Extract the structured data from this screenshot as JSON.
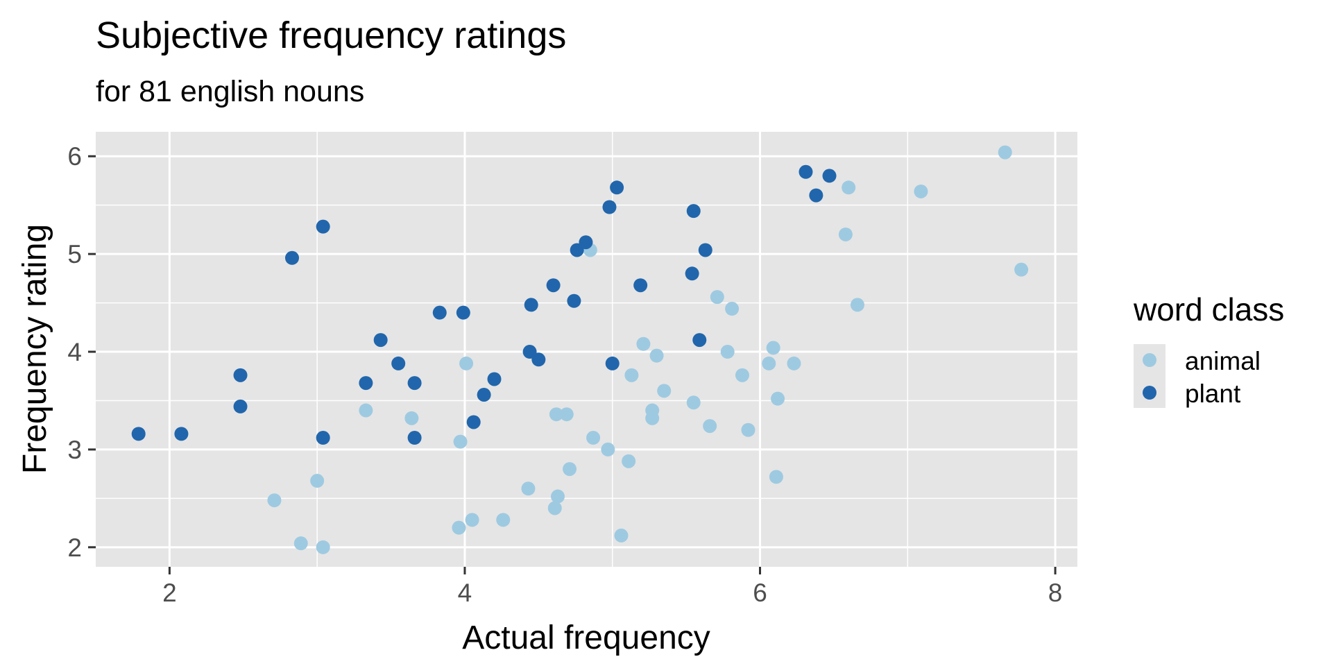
{
  "chart_data": {
    "type": "scatter",
    "title": "Subjective frequency ratings",
    "subtitle": "for 81 english nouns",
    "xlabel": "Actual frequency",
    "ylabel": "Frequency rating",
    "xlim": [
      1.5,
      8.15
    ],
    "ylim": [
      1.8,
      6.25
    ],
    "x_ticks": [
      2,
      4,
      6,
      8
    ],
    "y_ticks": [
      2,
      3,
      4,
      5,
      6
    ],
    "grid": true,
    "legend": {
      "title": "word class",
      "position": "right",
      "entries": [
        "animal",
        "plant"
      ]
    },
    "colors": {
      "animal": "#9ecae1",
      "plant": "#2166ac",
      "panel": "#e5e5e5",
      "grid": "#ffffff"
    },
    "series": [
      {
        "name": "animal",
        "points": [
          [
            2.71,
            2.48
          ],
          [
            2.89,
            2.04
          ],
          [
            3.0,
            2.68
          ],
          [
            3.04,
            2.0
          ],
          [
            3.33,
            3.4
          ],
          [
            3.64,
            3.32
          ],
          [
            3.97,
            3.08
          ],
          [
            3.96,
            2.2
          ],
          [
            4.01,
            3.88
          ],
          [
            4.05,
            2.28
          ],
          [
            4.26,
            2.28
          ],
          [
            4.43,
            2.6
          ],
          [
            4.61,
            2.4
          ],
          [
            4.62,
            3.36
          ],
          [
            4.63,
            2.52
          ],
          [
            4.69,
            3.36
          ],
          [
            4.71,
            2.8
          ],
          [
            4.85,
            5.04
          ],
          [
            4.87,
            3.12
          ],
          [
            4.97,
            3.0
          ],
          [
            5.06,
            2.12
          ],
          [
            5.11,
            2.88
          ],
          [
            5.13,
            3.76
          ],
          [
            5.21,
            4.08
          ],
          [
            5.27,
            3.32
          ],
          [
            5.27,
            3.4
          ],
          [
            5.3,
            3.96
          ],
          [
            5.35,
            3.6
          ],
          [
            5.55,
            3.48
          ],
          [
            5.66,
            3.24
          ],
          [
            5.71,
            4.56
          ],
          [
            5.78,
            4.0
          ],
          [
            5.81,
            4.44
          ],
          [
            5.88,
            3.76
          ],
          [
            5.92,
            3.2
          ],
          [
            6.06,
            3.88
          ],
          [
            6.09,
            4.04
          ],
          [
            6.11,
            2.72
          ],
          [
            6.12,
            3.52
          ],
          [
            6.23,
            3.88
          ],
          [
            6.58,
            5.2
          ],
          [
            6.6,
            5.68
          ],
          [
            6.66,
            4.48
          ],
          [
            7.09,
            5.64
          ],
          [
            7.66,
            6.04
          ],
          [
            7.77,
            4.84
          ]
        ]
      },
      {
        "name": "plant",
        "points": [
          [
            1.79,
            3.16
          ],
          [
            2.08,
            3.16
          ],
          [
            2.48,
            3.76
          ],
          [
            2.48,
            3.44
          ],
          [
            2.83,
            4.96
          ],
          [
            3.04,
            5.28
          ],
          [
            3.04,
            3.12
          ],
          [
            3.33,
            3.68
          ],
          [
            3.43,
            4.12
          ],
          [
            3.55,
            3.88
          ],
          [
            3.66,
            3.68
          ],
          [
            3.66,
            3.12
          ],
          [
            3.83,
            4.4
          ],
          [
            3.99,
            4.4
          ],
          [
            4.06,
            3.28
          ],
          [
            4.13,
            3.56
          ],
          [
            4.2,
            3.72
          ],
          [
            4.44,
            4.0
          ],
          [
            4.45,
            4.48
          ],
          [
            4.5,
            3.92
          ],
          [
            4.6,
            4.68
          ],
          [
            4.74,
            4.52
          ],
          [
            4.76,
            5.04
          ],
          [
            4.82,
            5.12
          ],
          [
            4.98,
            5.48
          ],
          [
            5.0,
            3.88
          ],
          [
            5.03,
            5.68
          ],
          [
            5.19,
            4.68
          ],
          [
            5.54,
            4.8
          ],
          [
            5.55,
            5.44
          ],
          [
            5.59,
            4.12
          ],
          [
            5.63,
            5.04
          ],
          [
            6.31,
            5.84
          ],
          [
            6.38,
            5.6
          ],
          [
            6.47,
            5.8
          ]
        ]
      }
    ]
  }
}
